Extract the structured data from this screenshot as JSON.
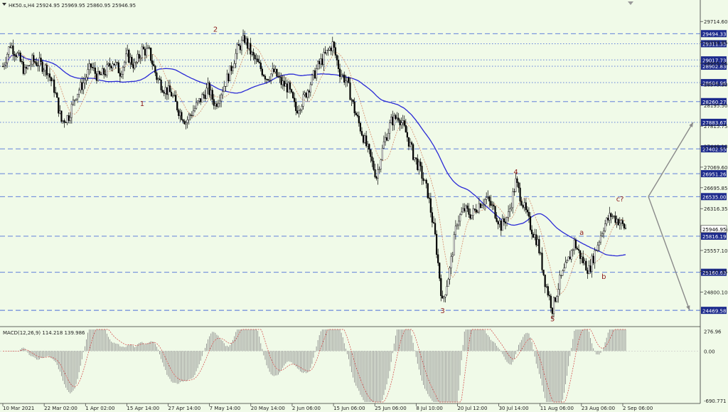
{
  "header": {
    "symbol_info": "HK50.s,H4  25924.95 25969.95 25860.95 25946.95"
  },
  "macd_header": "MACD(12,26,9) 114.218 139.986",
  "colors": {
    "background": "#f0fae8",
    "candle": "#000000",
    "ma_slow": "#2a2ad6",
    "ma_fast": "#d68a6a",
    "level_line": "#4e6fd8",
    "price_box": "#1c2a8c",
    "wave_label": "#8b1a1a",
    "arrow": "#8a8a8a",
    "macd_hist": "#8c8c8c",
    "macd_signal": "#d04040"
  },
  "chart_data": {
    "type": "candlestick",
    "title": "",
    "ylim": [
      24200,
      29950
    ],
    "price_ticks": [
      "29714.60",
      "29334.85",
      "28955.05",
      "28575.30",
      "28195.50",
      "27815.75",
      "27449.10",
      "27069.60",
      "26695.85",
      "26316.35",
      "25936.60",
      "25557.10",
      "25177.35",
      "24800.10"
    ],
    "levels": [
      {
        "value": 29494.33,
        "label": "29494.33",
        "style": "dashed"
      },
      {
        "value": 29311.35,
        "label": "29311.35",
        "style": "dotted"
      },
      {
        "value": 29017.73,
        "label": "29017.73",
        "style": "dotted"
      },
      {
        "value": 28902.83,
        "label": "28902.83",
        "style": "dotted"
      },
      {
        "value": 28604.96,
        "label": "28604.96",
        "style": "dotted"
      },
      {
        "value": 28260.27,
        "label": "28260.27",
        "style": "dashed"
      },
      {
        "value": 27883.67,
        "label": "27883.67",
        "style": "dotted"
      },
      {
        "value": 27402.55,
        "label": "27402.55",
        "style": "dashed"
      },
      {
        "value": 26951.26,
        "label": "26951.26",
        "style": "dashed"
      },
      {
        "value": 26535.0,
        "label": "26535.00",
        "style": "dashed"
      },
      {
        "value": 25816.19,
        "label": "25816.19",
        "style": "dashed"
      },
      {
        "value": 25160.63,
        "label": "25160.63",
        "style": "dashed"
      },
      {
        "value": 24469.58,
        "label": "24469.58",
        "style": "dashed"
      }
    ],
    "current_price": {
      "value": 25946.95,
      "label": "25946.95"
    },
    "x_labels": [
      "10 Mar 2021",
      "22 Mar 02:00",
      "1 Apr 02:00",
      "15 Apr 14:00",
      "27 Apr 14:00",
      "7 May 14:00",
      "20 May 14:00",
      "2 Jun 06:00",
      "15 Jun 06:00",
      "25 Jun 06:00",
      "8 Jul 10:00",
      "20 Jul 12:00",
      "30 Jul 14:00",
      "11 Aug 06:00",
      "23 Aug 06:00",
      "2 Sep 06:00"
    ],
    "price_path": [
      [
        0,
        28900
      ],
      [
        5,
        29300
      ],
      [
        10,
        29100
      ],
      [
        15,
        28800
      ],
      [
        20,
        29000
      ],
      [
        25,
        28950
      ],
      [
        30,
        28850
      ],
      [
        35,
        28500
      ],
      [
        40,
        27900
      ],
      [
        45,
        28000
      ],
      [
        50,
        28400
      ],
      [
        55,
        28600
      ],
      [
        60,
        28900
      ],
      [
        65,
        28700
      ],
      [
        70,
        28800
      ],
      [
        75,
        29000
      ],
      [
        80,
        28800
      ],
      [
        85,
        29100
      ],
      [
        90,
        28900
      ],
      [
        95,
        29200
      ],
      [
        100,
        29150
      ],
      [
        105,
        28700
      ],
      [
        110,
        28500
      ],
      [
        115,
        28400
      ],
      [
        120,
        28100
      ],
      [
        125,
        27900
      ],
      [
        130,
        28100
      ],
      [
        135,
        28300
      ],
      [
        140,
        28500
      ],
      [
        145,
        28200
      ],
      [
        150,
        28500
      ],
      [
        155,
        28800
      ],
      [
        160,
        29200
      ],
      [
        165,
        29400
      ],
      [
        170,
        29100
      ],
      [
        175,
        28900
      ],
      [
        180,
        28700
      ],
      [
        185,
        28800
      ],
      [
        190,
        28600
      ],
      [
        195,
        28500
      ],
      [
        200,
        28100
      ],
      [
        205,
        28300
      ],
      [
        210,
        28600
      ],
      [
        215,
        28900
      ],
      [
        220,
        29100
      ],
      [
        225,
        29300
      ],
      [
        230,
        28800
      ],
      [
        235,
        28600
      ],
      [
        240,
        28100
      ],
      [
        245,
        27700
      ],
      [
        250,
        27300
      ],
      [
        255,
        26900
      ],
      [
        260,
        27500
      ],
      [
        265,
        27900
      ],
      [
        270,
        28000
      ],
      [
        275,
        27700
      ],
      [
        280,
        27300
      ],
      [
        285,
        27000
      ],
      [
        290,
        26600
      ],
      [
        295,
        25800
      ],
      [
        300,
        24600
      ],
      [
        305,
        25200
      ],
      [
        310,
        26100
      ],
      [
        315,
        26300
      ],
      [
        320,
        26200
      ],
      [
        325,
        26400
      ],
      [
        330,
        26500
      ],
      [
        335,
        26300
      ],
      [
        340,
        26000
      ],
      [
        345,
        26200
      ],
      [
        350,
        26800
      ],
      [
        355,
        26400
      ],
      [
        360,
        26000
      ],
      [
        365,
        25700
      ],
      [
        370,
        25000
      ],
      [
        375,
        24500
      ],
      [
        380,
        25000
      ],
      [
        385,
        25300
      ],
      [
        390,
        25700
      ],
      [
        395,
        25400
      ],
      [
        400,
        25200
      ],
      [
        405,
        25600
      ],
      [
        410,
        26000
      ],
      [
        415,
        26200
      ],
      [
        420,
        26100
      ],
      [
        425,
        25950
      ]
    ],
    "waves": [
      {
        "label": "1",
        "x": 95,
        "value": 28180
      },
      {
        "label": "2",
        "x": 145,
        "value": 29530
      },
      {
        "label": "3",
        "x": 300,
        "value": 24420
      },
      {
        "label": "4",
        "x": 350,
        "value": 26940
      },
      {
        "label": "5",
        "x": 375,
        "value": 24270
      },
      {
        "label": "a",
        "x": 395,
        "value": 25840
      },
      {
        "label": "b",
        "x": 410,
        "value": 25040
      },
      {
        "label": "c?",
        "x": 420,
        "value": 26450
      }
    ],
    "macd": {
      "label_top": "276.96",
      "label_zero": "0.00",
      "label_bottom": "-690.771",
      "ylim": [
        -720,
        310
      ]
    }
  }
}
